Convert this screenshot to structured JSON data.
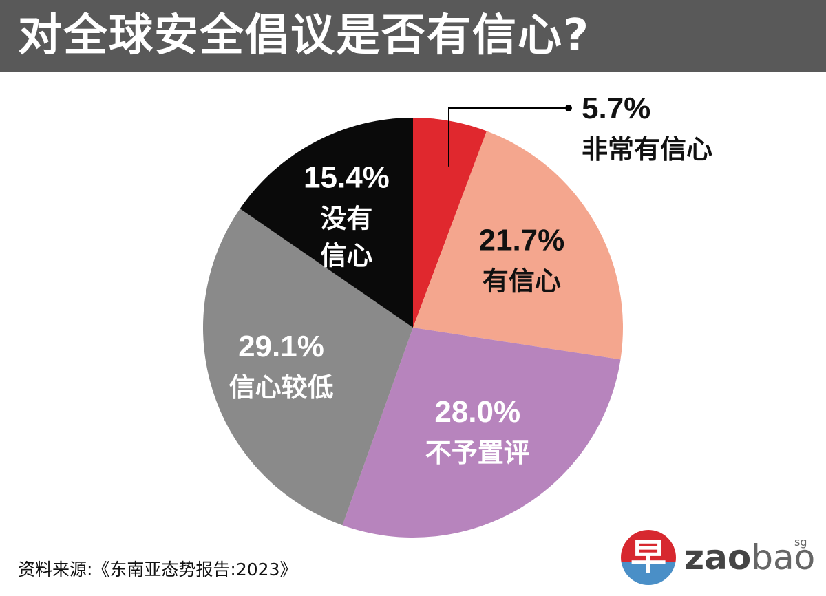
{
  "title": "对全球安全倡议是否有信心?",
  "source": "资料来源:《东南亚态势报告:2023》",
  "logo": {
    "glyph": "早",
    "word_bold": "zao",
    "word_light": "bao",
    "sup": "sg"
  },
  "chart_data": {
    "type": "pie",
    "title": "对全球安全倡议是否有信心?",
    "unit": "%",
    "slices": [
      {
        "label": "非常有信心",
        "value": 5.7,
        "display": "5.7%",
        "color": "#e0282e",
        "text_color": "#111111"
      },
      {
        "label": "有信心",
        "value": 21.7,
        "display": "21.7%",
        "color": "#f4a68e",
        "text_color": "#111111"
      },
      {
        "label": "不予置评",
        "value": 28.0,
        "display": "28.0%",
        "color": "#b784bd",
        "text_color": "#ffffff"
      },
      {
        "label": "信心较低",
        "value": 29.1,
        "display": "29.1%",
        "color": "#8a8a8a",
        "text_color": "#ffffff"
      },
      {
        "label": "没有信心",
        "value": 15.4,
        "display": "15.4%",
        "color": "#0a0a0a",
        "text_color": "#ffffff"
      }
    ]
  }
}
